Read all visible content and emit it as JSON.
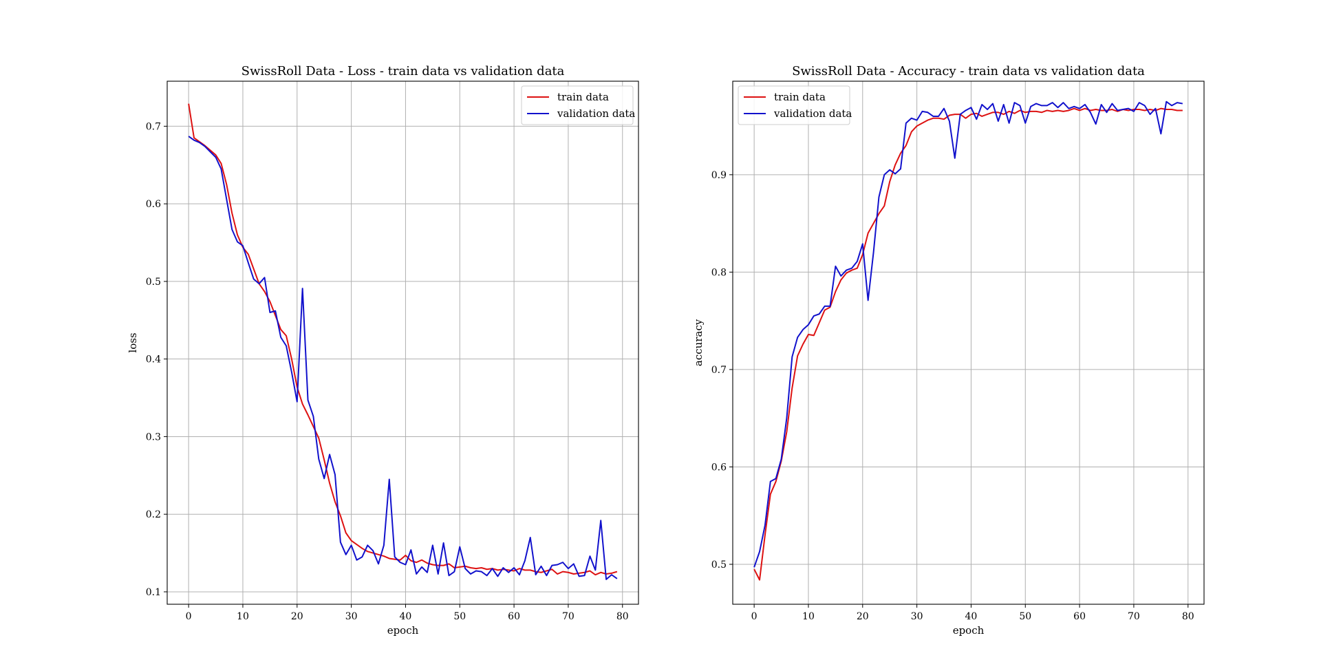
{
  "chart_data": [
    {
      "type": "line",
      "title": "SwissRoll Data - Loss - train data vs validation data",
      "xlabel": "epoch",
      "ylabel": "loss",
      "xlim": [
        -3.95,
        82.95
      ],
      "ylim": [
        0.084,
        0.758
      ],
      "xticks": [
        0,
        10,
        20,
        30,
        40,
        50,
        60,
        70,
        80
      ],
      "yticks": [
        0.1,
        0.2,
        0.3,
        0.4,
        0.5,
        0.6,
        0.7
      ],
      "ytick_labels": [
        "0.1",
        "0.2",
        "0.3",
        "0.4",
        "0.5",
        "0.6",
        "0.7"
      ],
      "grid": true,
      "legend": "upper right",
      "series": [
        {
          "name": "train data",
          "color": "#dd1111",
          "x_start": 0,
          "values": [
            0.729,
            0.685,
            0.68,
            0.675,
            0.669,
            0.663,
            0.652,
            0.625,
            0.588,
            0.56,
            0.544,
            0.535,
            0.516,
            0.497,
            0.487,
            0.474,
            0.456,
            0.438,
            0.43,
            0.4,
            0.364,
            0.342,
            0.328,
            0.313,
            0.298,
            0.27,
            0.24,
            0.216,
            0.198,
            0.176,
            0.166,
            0.161,
            0.156,
            0.152,
            0.15,
            0.148,
            0.146,
            0.143,
            0.142,
            0.141,
            0.147,
            0.14,
            0.138,
            0.141,
            0.137,
            0.135,
            0.134,
            0.134,
            0.136,
            0.131,
            0.132,
            0.133,
            0.131,
            0.13,
            0.131,
            0.129,
            0.13,
            0.128,
            0.129,
            0.128,
            0.127,
            0.13,
            0.128,
            0.128,
            0.126,
            0.125,
            0.127,
            0.129,
            0.123,
            0.126,
            0.125,
            0.123,
            0.124,
            0.125,
            0.127,
            0.122,
            0.125,
            0.123,
            0.124,
            0.126
          ]
        },
        {
          "name": "validation data",
          "color": "#1111cc",
          "x_start": 0,
          "values": [
            0.687,
            0.682,
            0.679,
            0.674,
            0.667,
            0.66,
            0.645,
            0.606,
            0.567,
            0.551,
            0.546,
            0.524,
            0.503,
            0.497,
            0.505,
            0.46,
            0.462,
            0.428,
            0.417,
            0.383,
            0.345,
            0.491,
            0.347,
            0.326,
            0.271,
            0.246,
            0.277,
            0.251,
            0.164,
            0.148,
            0.16,
            0.141,
            0.145,
            0.16,
            0.153,
            0.136,
            0.16,
            0.245,
            0.145,
            0.138,
            0.135,
            0.154,
            0.123,
            0.132,
            0.125,
            0.16,
            0.123,
            0.163,
            0.121,
            0.126,
            0.158,
            0.13,
            0.123,
            0.127,
            0.126,
            0.121,
            0.13,
            0.12,
            0.131,
            0.125,
            0.131,
            0.122,
            0.14,
            0.17,
            0.122,
            0.133,
            0.121,
            0.134,
            0.135,
            0.138,
            0.13,
            0.136,
            0.12,
            0.121,
            0.146,
            0.128,
            0.192,
            0.116,
            0.122,
            0.117
          ]
        }
      ]
    },
    {
      "type": "line",
      "title": "SwissRoll Data - Accuracy - train data vs validation data",
      "xlabel": "epoch",
      "ylabel": "accuracy",
      "xlim": [
        -3.95,
        82.95
      ],
      "ylim": [
        0.459,
        0.996
      ],
      "xticks": [
        0,
        10,
        20,
        30,
        40,
        50,
        60,
        70,
        80
      ],
      "yticks": [
        0.5,
        0.6,
        0.7,
        0.8,
        0.9
      ],
      "ytick_labels": [
        "0.5",
        "0.6",
        "0.7",
        "0.8",
        "0.9"
      ],
      "grid": true,
      "legend": "upper left",
      "series": [
        {
          "name": "train data",
          "color": "#dd1111",
          "x_start": 0,
          "values": [
            0.495,
            0.484,
            0.53,
            0.572,
            0.585,
            0.606,
            0.636,
            0.681,
            0.714,
            0.726,
            0.736,
            0.735,
            0.748,
            0.761,
            0.764,
            0.78,
            0.792,
            0.799,
            0.802,
            0.804,
            0.818,
            0.84,
            0.85,
            0.86,
            0.868,
            0.893,
            0.91,
            0.922,
            0.93,
            0.944,
            0.95,
            0.953,
            0.956,
            0.958,
            0.958,
            0.957,
            0.961,
            0.962,
            0.962,
            0.958,
            0.962,
            0.963,
            0.96,
            0.962,
            0.964,
            0.964,
            0.962,
            0.965,
            0.963,
            0.966,
            0.964,
            0.965,
            0.965,
            0.964,
            0.966,
            0.965,
            0.966,
            0.965,
            0.966,
            0.968,
            0.966,
            0.968,
            0.966,
            0.967,
            0.966,
            0.966,
            0.967,
            0.965,
            0.967,
            0.966,
            0.967,
            0.967,
            0.966,
            0.967,
            0.966,
            0.968,
            0.967,
            0.967,
            0.966,
            0.966
          ]
        },
        {
          "name": "validation data",
          "color": "#1111cc",
          "x_start": 0,
          "values": [
            0.497,
            0.513,
            0.54,
            0.585,
            0.588,
            0.608,
            0.65,
            0.713,
            0.733,
            0.741,
            0.746,
            0.755,
            0.757,
            0.765,
            0.765,
            0.806,
            0.796,
            0.802,
            0.804,
            0.811,
            0.829,
            0.771,
            0.82,
            0.877,
            0.9,
            0.905,
            0.901,
            0.906,
            0.953,
            0.958,
            0.956,
            0.965,
            0.964,
            0.96,
            0.96,
            0.968,
            0.955,
            0.917,
            0.962,
            0.966,
            0.969,
            0.957,
            0.972,
            0.967,
            0.973,
            0.955,
            0.972,
            0.953,
            0.974,
            0.971,
            0.953,
            0.97,
            0.973,
            0.971,
            0.971,
            0.974,
            0.969,
            0.974,
            0.968,
            0.97,
            0.968,
            0.972,
            0.964,
            0.952,
            0.972,
            0.964,
            0.973,
            0.966,
            0.967,
            0.968,
            0.965,
            0.974,
            0.971,
            0.962,
            0.968,
            0.942,
            0.975,
            0.971,
            0.974,
            0.973
          ]
        }
      ]
    }
  ]
}
